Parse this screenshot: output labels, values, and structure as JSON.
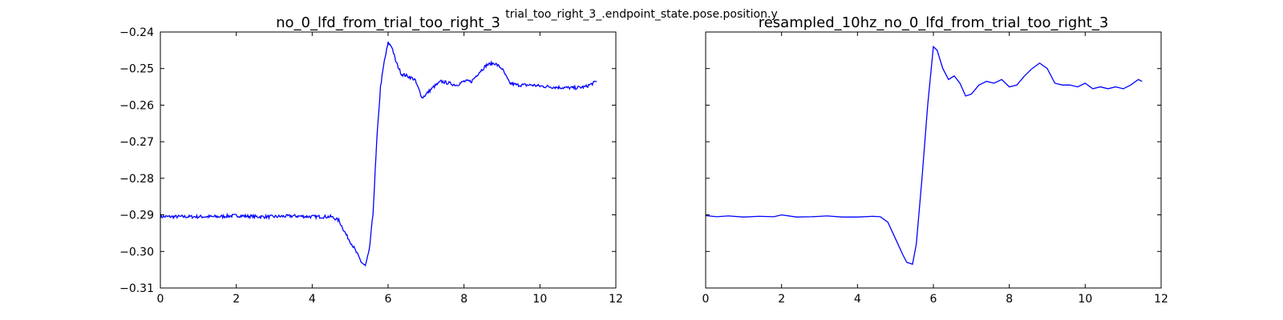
{
  "figure": {
    "suptitle": "trial_too_right_3_.endpoint_state.pose.position.y"
  },
  "chart_data": [
    {
      "type": "line",
      "title": "no_0_lfd_from_trial_too_right_3",
      "xlabel": "",
      "ylabel": "",
      "xlim": [
        0,
        12
      ],
      "ylim": [
        -0.31,
        -0.24
      ],
      "xticks": [
        0,
        2,
        4,
        6,
        8,
        10,
        12
      ],
      "yticks": [
        -0.31,
        -0.3,
        -0.29,
        -0.28,
        -0.27,
        -0.26,
        -0.25,
        -0.24
      ],
      "xtick_labels": [
        "0",
        "2",
        "4",
        "6",
        "8",
        "10",
        "12"
      ],
      "ytick_labels": [
        "−0.31",
        "−0.30",
        "−0.29",
        "−0.28",
        "−0.27",
        "−0.26",
        "−0.25",
        "−0.24"
      ],
      "grid": false,
      "line_color": "#0000ff",
      "noisy": true,
      "series": [
        {
          "x": [
            0,
            0.5,
            1,
            1.5,
            2,
            2.5,
            3,
            3.5,
            4,
            4.5,
            4.7,
            4.9,
            5.1,
            5.3,
            5.4,
            5.5,
            5.6,
            5.7,
            5.8,
            5.9,
            6.0,
            6.1,
            6.2,
            6.35,
            6.5,
            6.7,
            6.9,
            7.0,
            7.2,
            7.4,
            7.6,
            7.8,
            8.0,
            8.2,
            8.4,
            8.6,
            8.8,
            9.0,
            9.2,
            9.4,
            9.6,
            9.8,
            10.0,
            10.3,
            10.6,
            10.9,
            11.2,
            11.5
          ],
          "y": [
            -0.2905,
            -0.2905,
            -0.2905,
            -0.2905,
            -0.2902,
            -0.2905,
            -0.2905,
            -0.2903,
            -0.2905,
            -0.2905,
            -0.2915,
            -0.2955,
            -0.299,
            -0.303,
            -0.304,
            -0.3,
            -0.29,
            -0.27,
            -0.255,
            -0.248,
            -0.243,
            -0.244,
            -0.248,
            -0.2515,
            -0.252,
            -0.253,
            -0.258,
            -0.257,
            -0.255,
            -0.2535,
            -0.254,
            -0.2545,
            -0.2535,
            -0.2535,
            -0.251,
            -0.249,
            -0.2485,
            -0.25,
            -0.254,
            -0.2545,
            -0.2545,
            -0.2545,
            -0.2548,
            -0.255,
            -0.2552,
            -0.2553,
            -0.255,
            -0.2535
          ]
        }
      ]
    },
    {
      "type": "line",
      "title": "resampled_10hz_no_0_lfd_from_trial_too_right_3",
      "xlabel": "",
      "ylabel": "",
      "xlim": [
        0,
        12
      ],
      "ylim": [
        -0.31,
        -0.24
      ],
      "xticks": [
        0,
        2,
        4,
        6,
        8,
        10,
        12
      ],
      "yticks": [
        -0.31,
        -0.3,
        -0.29,
        -0.28,
        -0.27,
        -0.26,
        -0.25,
        -0.24
      ],
      "xtick_labels": [
        "0",
        "2",
        "4",
        "6",
        "8",
        "10",
        "12"
      ],
      "ytick_labels": [],
      "grid": false,
      "line_color": "#0000ff",
      "noisy": false,
      "series": [
        {
          "x": [
            0,
            0.3,
            0.6,
            1.0,
            1.4,
            1.8,
            2.0,
            2.4,
            2.8,
            3.2,
            3.6,
            4.0,
            4.4,
            4.6,
            4.8,
            5.0,
            5.2,
            5.3,
            5.45,
            5.55,
            5.7,
            5.85,
            6.0,
            6.1,
            6.25,
            6.4,
            6.55,
            6.7,
            6.85,
            7.0,
            7.2,
            7.4,
            7.6,
            7.8,
            8.0,
            8.2,
            8.4,
            8.6,
            8.8,
            9.0,
            9.2,
            9.4,
            9.6,
            9.8,
            10.0,
            10.2,
            10.4,
            10.6,
            10.8,
            11.0,
            11.2,
            11.4,
            11.5
          ],
          "y": [
            -0.2902,
            -0.2905,
            -0.2903,
            -0.2906,
            -0.2904,
            -0.2905,
            -0.29,
            -0.2906,
            -0.2905,
            -0.2903,
            -0.2906,
            -0.2906,
            -0.2904,
            -0.2905,
            -0.292,
            -0.2965,
            -0.301,
            -0.303,
            -0.3035,
            -0.298,
            -0.28,
            -0.26,
            -0.244,
            -0.245,
            -0.25,
            -0.253,
            -0.252,
            -0.254,
            -0.2575,
            -0.257,
            -0.2545,
            -0.2535,
            -0.254,
            -0.253,
            -0.255,
            -0.2545,
            -0.252,
            -0.25,
            -0.2485,
            -0.25,
            -0.254,
            -0.2545,
            -0.2545,
            -0.255,
            -0.254,
            -0.2555,
            -0.255,
            -0.2555,
            -0.255,
            -0.2555,
            -0.2545,
            -0.253,
            -0.2535
          ]
        }
      ]
    }
  ]
}
